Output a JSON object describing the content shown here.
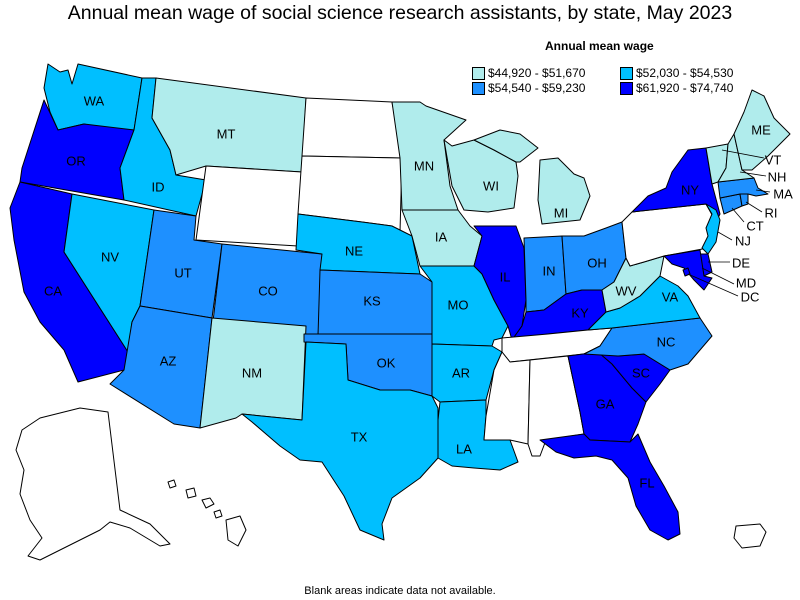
{
  "title": "Annual mean wage of social science research assistants, by state, May 2023",
  "legend": {
    "title": "Annual mean wage",
    "bins": [
      {
        "label": "$44,920 - $51,670",
        "color": "#b0ecec"
      },
      {
        "label": "$52,030 - $54,530",
        "color": "#00bfff"
      },
      {
        "label": "$54,540 - $59,230",
        "color": "#1e90ff"
      },
      {
        "label": "$61,920 - $74,740",
        "color": "#0000ff"
      }
    ]
  },
  "no_data_color": "#ffffff",
  "footnote": "Blank areas indicate data not available.",
  "states": {
    "WA": {
      "label": "WA",
      "bin": 1
    },
    "OR": {
      "label": "OR",
      "bin": 3
    },
    "CA": {
      "label": "CA",
      "bin": 3
    },
    "ID": {
      "label": "ID",
      "bin": 1
    },
    "NV": {
      "label": "NV",
      "bin": 1
    },
    "MT": {
      "label": "MT",
      "bin": 0
    },
    "WY": {
      "label": "",
      "bin": null
    },
    "UT": {
      "label": "UT",
      "bin": 2
    },
    "AZ": {
      "label": "AZ",
      "bin": 2
    },
    "CO": {
      "label": "CO",
      "bin": 2
    },
    "NM": {
      "label": "NM",
      "bin": 0
    },
    "ND": {
      "label": "",
      "bin": null
    },
    "SD": {
      "label": "",
      "bin": null
    },
    "NE": {
      "label": "NE",
      "bin": 1
    },
    "KS": {
      "label": "KS",
      "bin": 2
    },
    "OK": {
      "label": "OK",
      "bin": 2
    },
    "TX": {
      "label": "TX",
      "bin": 1
    },
    "MN": {
      "label": "MN",
      "bin": 0
    },
    "IA": {
      "label": "IA",
      "bin": 0
    },
    "MO": {
      "label": "MO",
      "bin": 1
    },
    "AR": {
      "label": "AR",
      "bin": 1
    },
    "LA": {
      "label": "LA",
      "bin": 1
    },
    "WI": {
      "label": "WI",
      "bin": 0
    },
    "IL": {
      "label": "IL",
      "bin": 3
    },
    "MI": {
      "label": "MI",
      "bin": 0
    },
    "IN": {
      "label": "IN",
      "bin": 2
    },
    "OH": {
      "label": "OH",
      "bin": 2
    },
    "KY": {
      "label": "KY",
      "bin": 3
    },
    "TN": {
      "label": "",
      "bin": null
    },
    "MS": {
      "label": "",
      "bin": null
    },
    "AL": {
      "label": "",
      "bin": null
    },
    "GA": {
      "label": "GA",
      "bin": 3
    },
    "FL": {
      "label": "FL",
      "bin": 3
    },
    "SC": {
      "label": "SC",
      "bin": 3
    },
    "NC": {
      "label": "NC",
      "bin": 2
    },
    "VA": {
      "label": "VA",
      "bin": 1
    },
    "WV": {
      "label": "WV",
      "bin": 0
    },
    "PA": {
      "label": "",
      "bin": null
    },
    "NY": {
      "label": "NY",
      "bin": 3
    },
    "VT": {
      "label": "VT",
      "bin": 0
    },
    "NH": {
      "label": "NH",
      "bin": 0
    },
    "ME": {
      "label": "ME",
      "bin": 0
    },
    "MA": {
      "label": "MA",
      "bin": 2
    },
    "RI": {
      "label": "RI",
      "bin": 2
    },
    "CT": {
      "label": "CT",
      "bin": 2
    },
    "NJ": {
      "label": "NJ",
      "bin": 1
    },
    "DE": {
      "label": "DE",
      "bin": 3
    },
    "MD": {
      "label": "MD",
      "bin": 3
    },
    "DC": {
      "label": "DC",
      "bin": 3
    },
    "AK": {
      "label": "",
      "bin": null
    },
    "HI": {
      "label": "",
      "bin": null
    },
    "PR": {
      "label": "",
      "bin": null
    }
  }
}
